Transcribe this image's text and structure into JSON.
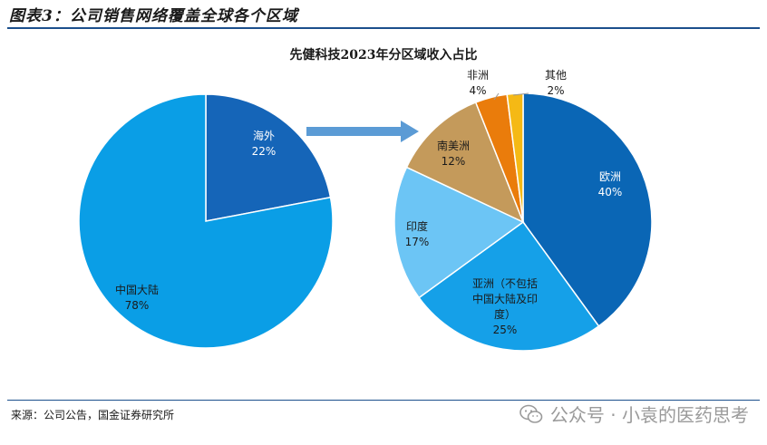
{
  "figure_title": "图表3：公司销售网络覆盖全球各个区域",
  "source": "来源：公司公告，国金证券研究所",
  "watermark": {
    "text": "公众号 · 小袁的医药思考",
    "icon": "wechat-icon"
  },
  "colors": {
    "rule": "#1c4f8c",
    "arrow": "#5b9bd5",
    "overseas": "#1565b8",
    "mainland": "#0a9ee6",
    "europe": "#0a66b5",
    "asia": "#15a0e8",
    "india": "#6cc5f5",
    "south_america": "#c49a5b",
    "africa": "#ea7c0b",
    "other": "#f5b915"
  },
  "chart_data": [
    {
      "type": "pie",
      "title": "",
      "slices": [
        {
          "label": "海外",
          "pct_label": "22%",
          "value": 22
        },
        {
          "label": "中国大陆",
          "pct_label": "78%",
          "value": 78
        }
      ]
    },
    {
      "type": "pie",
      "title": "先健科技2023年分区域收入占比",
      "slices": [
        {
          "label": "欧洲",
          "pct_label": "40%",
          "value": 40
        },
        {
          "label_lines": [
            "亚洲（不包括",
            "中国大陆及印",
            "度）"
          ],
          "pct_label": "25%",
          "value": 25
        },
        {
          "label": "印度",
          "pct_label": "17%",
          "value": 17
        },
        {
          "label": "南美洲",
          "pct_label": "12%",
          "value": 12
        },
        {
          "label": "非洲",
          "pct_label": "4%",
          "value": 4
        },
        {
          "label": "其他",
          "pct_label": "2%",
          "value": 2
        }
      ]
    }
  ]
}
